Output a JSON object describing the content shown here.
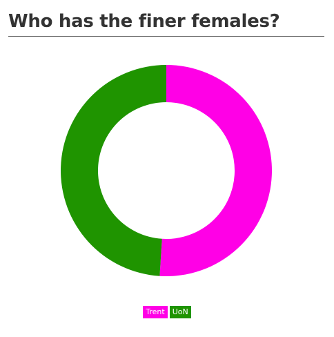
{
  "title": "Who has the finer females?",
  "colors": {
    "title_text": "#333333",
    "legend_text": "#ffffff"
  },
  "chart_data": {
    "type": "pie",
    "variant": "donut",
    "title": "Who has the finer females?",
    "legend_position": "bottom-center",
    "series": [
      {
        "name": "Trent",
        "value": 51,
        "color": "#ff00e6"
      },
      {
        "name": "UoN",
        "value": 49,
        "color": "#1f9400"
      }
    ]
  }
}
